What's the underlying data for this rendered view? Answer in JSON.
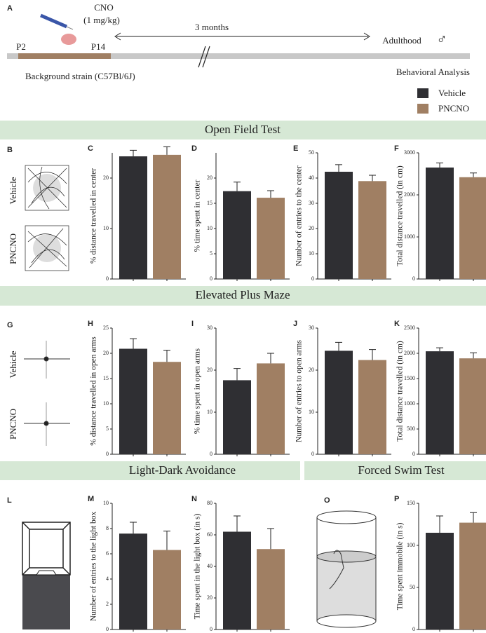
{
  "timeline": {
    "panel": "A",
    "drug": "CNO",
    "dose": "(1 mg/kg)",
    "start": "P2",
    "end": "P14",
    "duration": "3 months",
    "adult": "Adulthood",
    "sex": "♂",
    "strain": "Background strain (C57Bl/6J)",
    "analysis": "Behavioral Analysis"
  },
  "legend": [
    {
      "name": "Vehicle",
      "color": "#2f2f33"
    },
    {
      "name": "PNCNO",
      "color": "#a07f63"
    }
  ],
  "sections": [
    "Open Field Test",
    "Elevated Plus Maze",
    "Light-Dark Avoidance",
    "Forced Swim Test"
  ],
  "image_panels": [
    {
      "panel": "B",
      "labels": [
        "Vehicle",
        "PNCNO"
      ]
    },
    {
      "panel": "G",
      "labels": [
        "Vehicle",
        "PNCNO"
      ]
    },
    {
      "panel": "L"
    },
    {
      "panel": "O"
    }
  ],
  "chart_data": [
    {
      "type": "bar",
      "panel": "C",
      "ylabel": "% distance travelled in center",
      "ylim": [
        0,
        25
      ],
      "yticks": [
        0,
        10,
        20
      ],
      "values": [
        24.3,
        24.6
      ],
      "errors": [
        1.2,
        1.6
      ]
    },
    {
      "type": "bar",
      "panel": "D",
      "ylabel": "% time spent in center",
      "ylim": [
        0,
        25
      ],
      "yticks": [
        0,
        5,
        10,
        15,
        20
      ],
      "values": [
        17.4,
        16.1
      ],
      "errors": [
        1.8,
        1.4
      ]
    },
    {
      "type": "bar",
      "panel": "E",
      "ylabel": "Number of entries to the center",
      "ylim": [
        0,
        50
      ],
      "yticks": [
        0,
        10,
        20,
        30,
        40,
        50
      ],
      "values": [
        42.5,
        38.8
      ],
      "errors": [
        2.8,
        2.3
      ]
    },
    {
      "type": "bar",
      "panel": "F",
      "ylabel": "Total distance travelled (in cm)",
      "ylim": [
        0,
        3000
      ],
      "yticks": [
        0,
        1000,
        2000,
        3000
      ],
      "values": [
        2650,
        2420
      ],
      "errors": [
        110,
        100
      ]
    },
    {
      "type": "bar",
      "panel": "H",
      "ylabel": "% distance travelled in open arms",
      "ylim": [
        0,
        25
      ],
      "yticks": [
        0,
        5,
        10,
        15,
        20,
        25
      ],
      "values": [
        20.9,
        18.3
      ],
      "errors": [
        2,
        2.3
      ]
    },
    {
      "type": "bar",
      "panel": "I",
      "ylabel": "% time spent in open arms",
      "ylim": [
        0,
        30
      ],
      "yticks": [
        0,
        10,
        20,
        30
      ],
      "values": [
        17.6,
        21.6
      ],
      "errors": [
        2.8,
        2.4
      ]
    },
    {
      "type": "bar",
      "panel": "J",
      "ylabel": "Number of entries to open arms",
      "ylim": [
        0,
        30
      ],
      "yticks": [
        0,
        10,
        20,
        30
      ],
      "values": [
        24.6,
        22.4
      ],
      "errors": [
        2,
        2.5
      ]
    },
    {
      "type": "bar",
      "panel": "K",
      "ylabel": "Total distance travelled (in cm)",
      "ylim": [
        0,
        2500
      ],
      "yticks": [
        0,
        500,
        1000,
        1500,
        2000,
        2500
      ],
      "values": [
        2040,
        1900
      ],
      "errors": [
        70,
        110
      ]
    },
    {
      "type": "bar",
      "panel": "M",
      "ylabel": "Number of entries to the light box",
      "ylim": [
        0,
        10
      ],
      "yticks": [
        0,
        2,
        4,
        6,
        8,
        10
      ],
      "values": [
        7.6,
        6.3
      ],
      "errors": [
        0.9,
        1.5
      ]
    },
    {
      "type": "bar",
      "panel": "N",
      "ylabel": "Time spent in the light box (in s)",
      "ylim": [
        0,
        80
      ],
      "yticks": [
        0,
        20,
        40,
        60,
        80
      ],
      "values": [
        62,
        51
      ],
      "errors": [
        10,
        13
      ]
    },
    {
      "type": "bar",
      "panel": "P",
      "ylabel": "Time spent immobile (in s)",
      "ylim": [
        0,
        150
      ],
      "yticks": [
        0,
        50,
        100,
        150
      ],
      "values": [
        115,
        127
      ],
      "errors": [
        20,
        12
      ]
    }
  ]
}
